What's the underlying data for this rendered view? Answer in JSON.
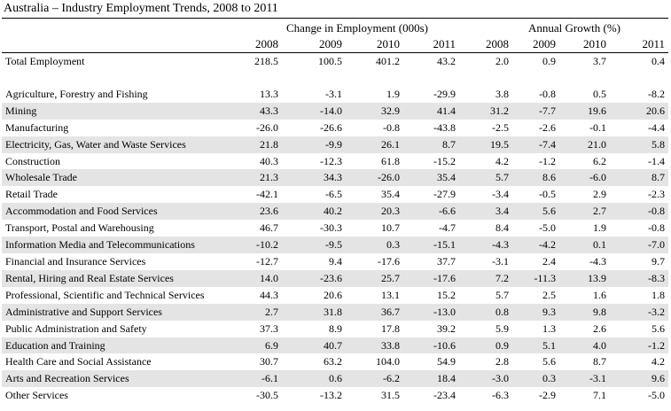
{
  "title": "Australia – Industry Employment Trends, 2008 to 2011",
  "headers": {
    "group_change": "Change in Employment (000s)",
    "group_growth": "Annual Growth (%)",
    "years": [
      "2008",
      "2009",
      "2010",
      "2011",
      "2008",
      "2009",
      "2010",
      "2011"
    ]
  },
  "rows": [
    {
      "label": "Total Employment",
      "values": [
        "218.5",
        "100.5",
        "401.2",
        "43.2",
        "2.0",
        "0.9",
        "3.7",
        "0.4"
      ]
    },
    {
      "label": "Agriculture, Forestry and Fishing",
      "values": [
        "13.3",
        "-3.1",
        "1.9",
        "-29.9",
        "3.8",
        "-0.8",
        "0.5",
        "-8.2"
      ]
    },
    {
      "label": "Mining",
      "values": [
        "43.3",
        "-14.0",
        "32.9",
        "41.4",
        "31.2",
        "-7.7",
        "19.6",
        "20.6"
      ]
    },
    {
      "label": "Manufacturing",
      "values": [
        "-26.0",
        "-26.6",
        "-0.8",
        "-43.8",
        "-2.5",
        "-2.6",
        "-0.1",
        "-4.4"
      ]
    },
    {
      "label": "Electricity, Gas, Water and Waste Services",
      "values": [
        "21.8",
        "-9.9",
        "26.1",
        "8.7",
        "19.5",
        "-7.4",
        "21.0",
        "5.8"
      ]
    },
    {
      "label": "Construction",
      "values": [
        "40.3",
        "-12.3",
        "61.8",
        "-15.2",
        "4.2",
        "-1.2",
        "6.2",
        "-1.4"
      ]
    },
    {
      "label": "Wholesale Trade",
      "values": [
        "21.3",
        "34.3",
        "-26.0",
        "35.4",
        "5.7",
        "8.6",
        "-6.0",
        "8.7"
      ]
    },
    {
      "label": "Retail Trade",
      "values": [
        "-42.1",
        "-6.5",
        "35.4",
        "-27.9",
        "-3.4",
        "-0.5",
        "2.9",
        "-2.3"
      ]
    },
    {
      "label": "Accommodation and Food Services",
      "values": [
        "23.6",
        "40.2",
        "20.3",
        "-6.6",
        "3.4",
        "5.6",
        "2.7",
        "-0.8"
      ]
    },
    {
      "label": "Transport, Postal and Warehousing",
      "values": [
        "46.7",
        "-30.3",
        "10.7",
        "-4.7",
        "8.4",
        "-5.0",
        "1.9",
        "-0.8"
      ]
    },
    {
      "label": "Information Media and Telecommunications",
      "values": [
        "-10.2",
        "-9.5",
        "0.3",
        "-15.1",
        "-4.3",
        "-4.2",
        "0.1",
        "-7.0"
      ]
    },
    {
      "label": "Financial and Insurance Services",
      "values": [
        "-12.7",
        "9.4",
        "-17.6",
        "37.7",
        "-3.1",
        "2.4",
        "-4.3",
        "9.7"
      ]
    },
    {
      "label": "Rental, Hiring and Real Estate Services",
      "values": [
        "14.0",
        "-23.6",
        "25.7",
        "-17.6",
        "7.2",
        "-11.3",
        "13.9",
        "-8.3"
      ]
    },
    {
      "label": "Professional, Scientific and Technical Services",
      "values": [
        "44.3",
        "20.6",
        "13.1",
        "15.2",
        "5.7",
        "2.5",
        "1.6",
        "1.8"
      ]
    },
    {
      "label": "Administrative and Support Services",
      "values": [
        "2.7",
        "31.8",
        "36.7",
        "-13.0",
        "0.8",
        "9.3",
        "9.8",
        "-3.2"
      ]
    },
    {
      "label": "Public Administration and Safety",
      "values": [
        "37.3",
        "8.9",
        "17.8",
        "39.2",
        "5.9",
        "1.3",
        "2.6",
        "5.6"
      ]
    },
    {
      "label": "Education and Training",
      "values": [
        "6.9",
        "40.7",
        "33.8",
        "-10.6",
        "0.9",
        "5.1",
        "4.0",
        "-1.2"
      ]
    },
    {
      "label": "Health Care and Social Assistance",
      "values": [
        "30.7",
        "63.2",
        "104.0",
        "54.9",
        "2.8",
        "5.6",
        "8.7",
        "4.2"
      ]
    },
    {
      "label": "Arts and Recreation Services",
      "values": [
        "-6.1",
        "0.6",
        "-6.2",
        "18.4",
        "-3.0",
        "0.3",
        "-3.1",
        "9.6"
      ]
    },
    {
      "label": "Other Services",
      "values": [
        "-30.5",
        "-13.2",
        "31.5",
        "-23.4",
        "-6.3",
        "-2.9",
        "7.1",
        "-5.0"
      ]
    }
  ],
  "colors": {
    "shade": "#e4e4e4",
    "rule": "#000000"
  }
}
